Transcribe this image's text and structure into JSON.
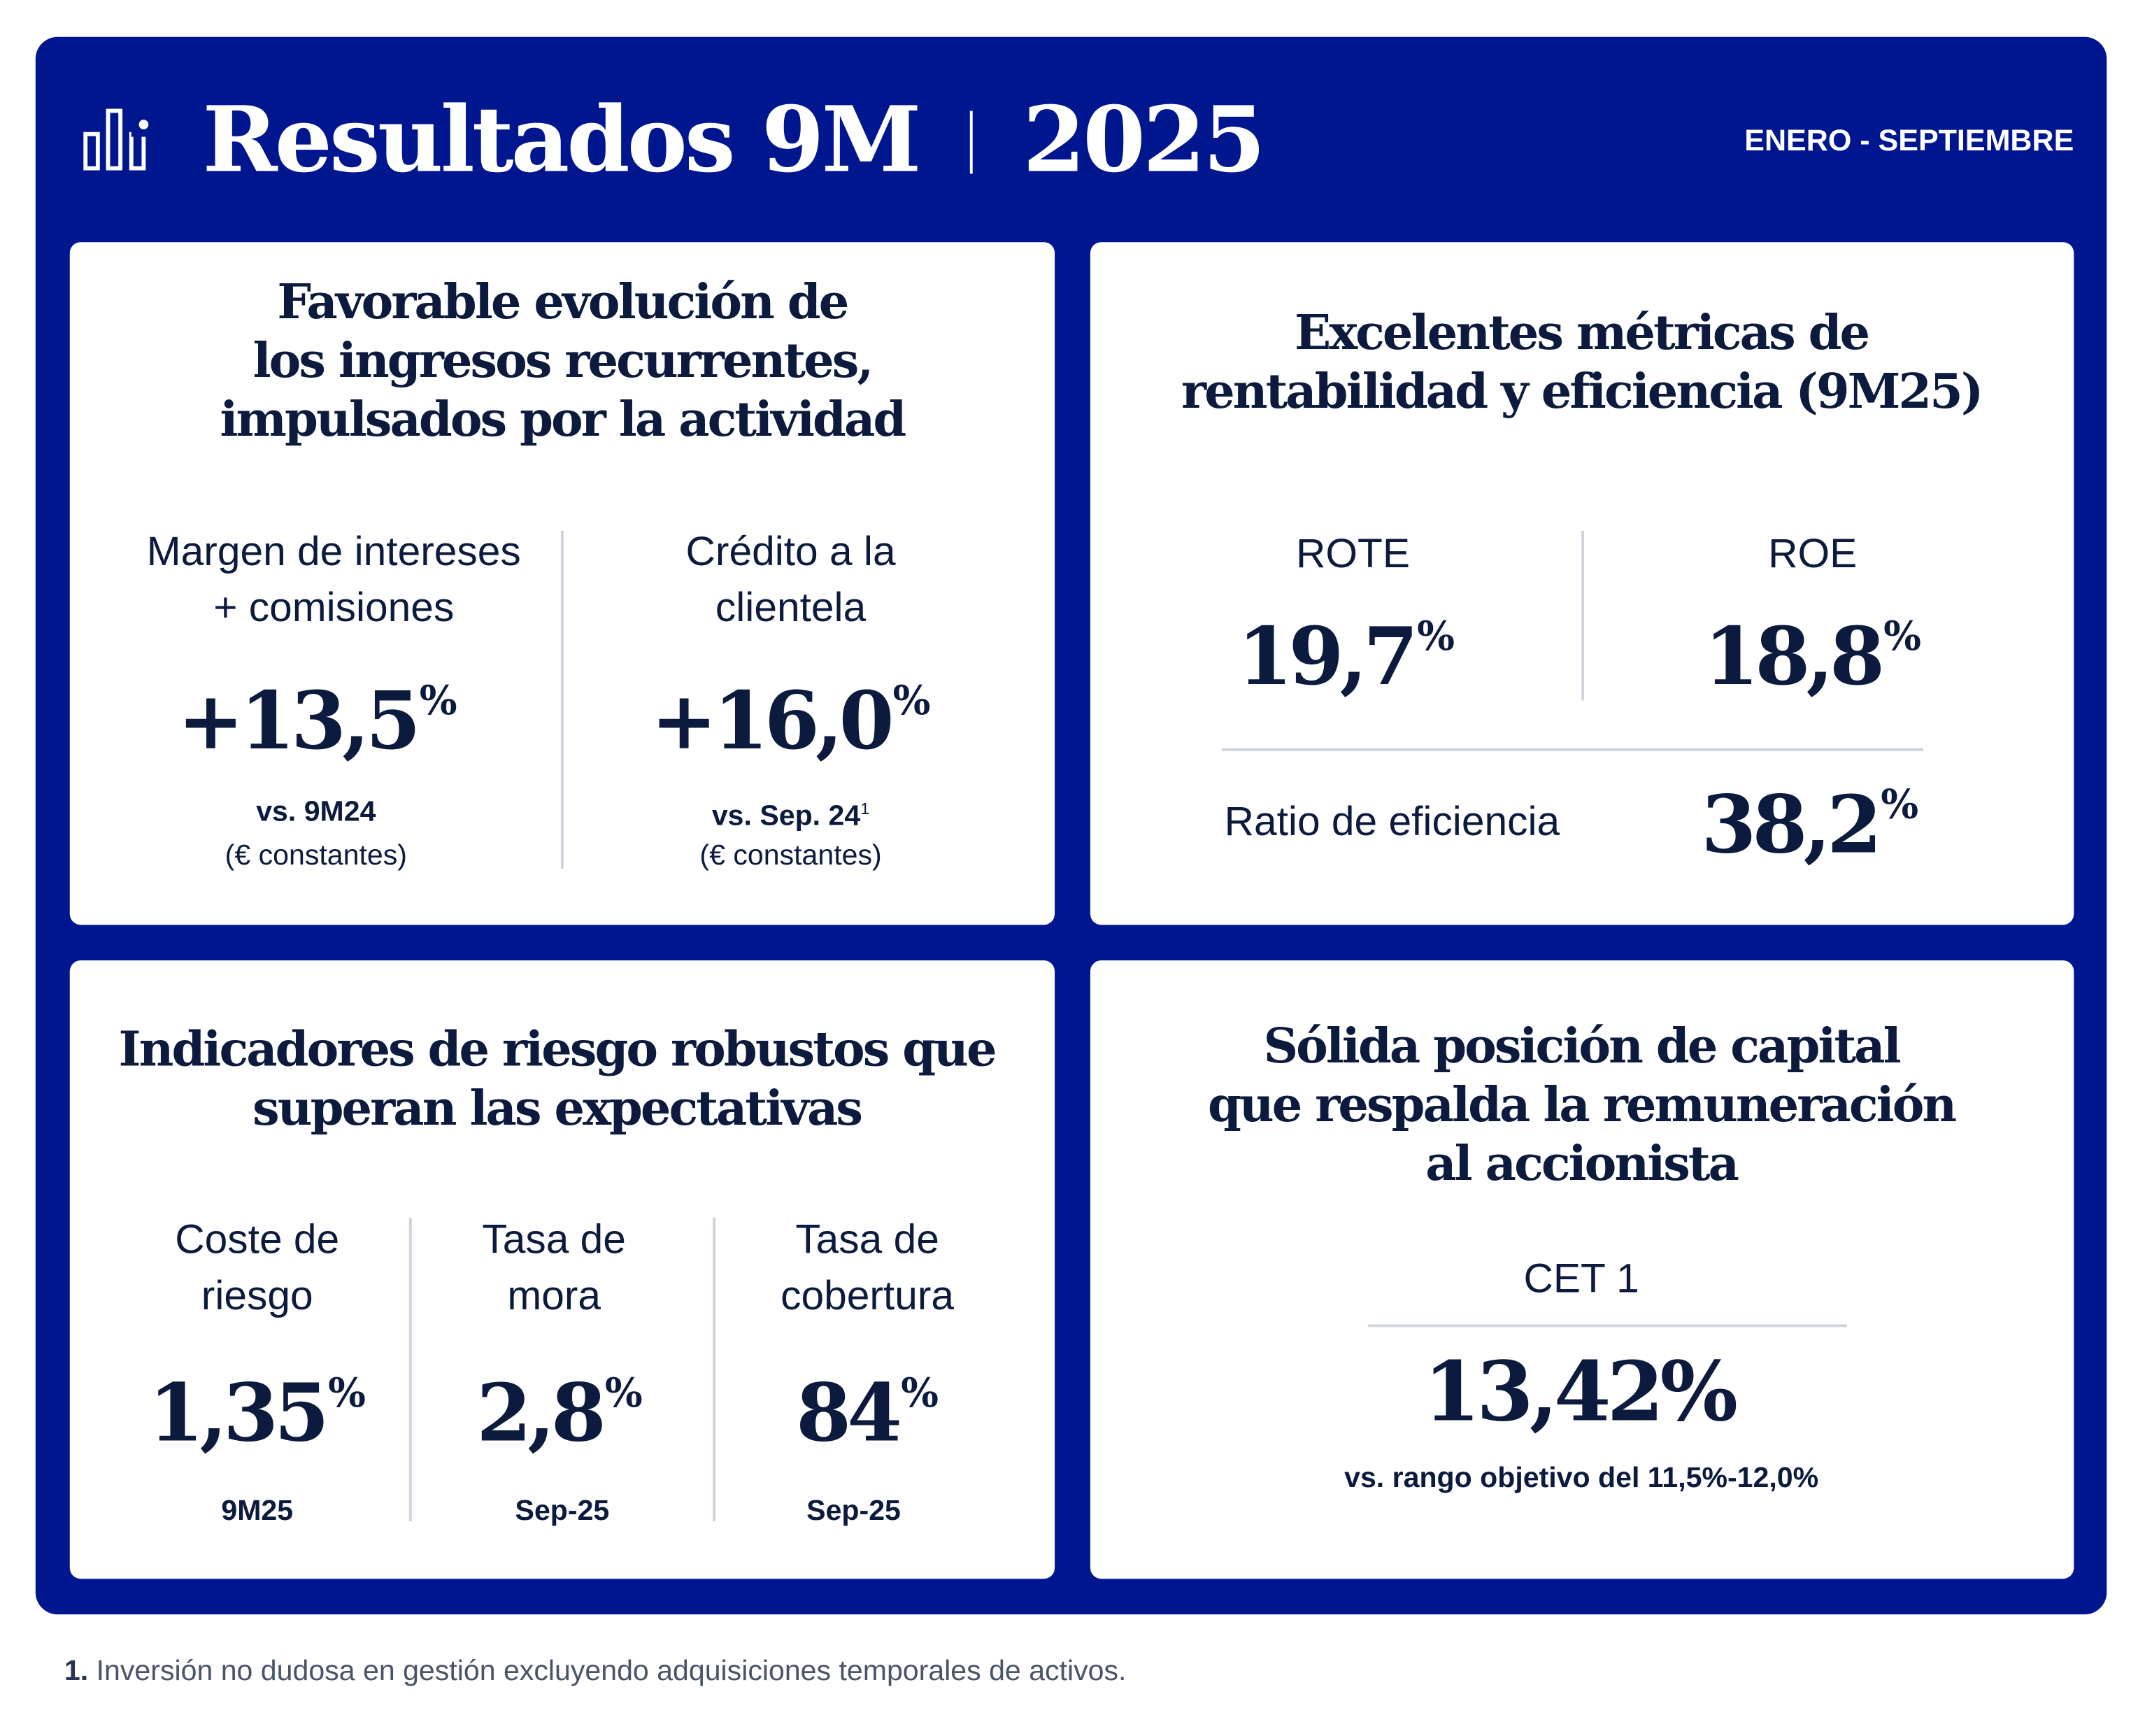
{
  "header": {
    "title": "Resultados 9M",
    "year": "2025",
    "period": "ENERO - SEPTIEMBRE",
    "icon": "bar-chart-icon"
  },
  "colors": {
    "brand_blue": "#00168f",
    "text": "#0c1a3d",
    "divider": "#cfd4dc"
  },
  "cards": {
    "ingresos": {
      "title": [
        "Favorable evolución de",
        "los ingresos recurrentes,",
        "impulsados por la actividad"
      ],
      "metrics": [
        {
          "label": [
            "Margen de intereses",
            "+ comisiones"
          ],
          "value": "+13,5",
          "unit": "%",
          "sub": "vs. 9M24",
          "sub2": "(€ constantes)"
        },
        {
          "label": [
            "Crédito a la",
            "clientela"
          ],
          "value": "+16,0",
          "unit": "%",
          "sub": "vs. Sep. 24",
          "sup": "1",
          "sub2": "(€ constantes)"
        }
      ]
    },
    "rentabilidad": {
      "title": [
        "Excelentes métricas de",
        "rentabilidad y eficiencia (9M25)"
      ],
      "metrics": [
        {
          "label": "ROTE",
          "value": "19,7",
          "unit": "%"
        },
        {
          "label": "ROE",
          "value": "18,8",
          "unit": "%"
        }
      ],
      "efficiency": {
        "label": "Ratio de eficiencia",
        "value": "38,2",
        "unit": "%"
      }
    },
    "riesgo": {
      "title": [
        "Indicadores de riesgo robustos que",
        "superan las expectativas"
      ],
      "metrics": [
        {
          "label": [
            "Coste de",
            "riesgo"
          ],
          "value": "1,35",
          "unit": "%",
          "sub": "9M25"
        },
        {
          "label": [
            "Tasa de",
            "mora"
          ],
          "value": "2,8",
          "unit": "%",
          "sub": "Sep-25"
        },
        {
          "label": [
            "Tasa de",
            "cobertura"
          ],
          "value": "84",
          "unit": "%",
          "sub": "Sep-25"
        }
      ]
    },
    "capital": {
      "title": [
        "Sólida posición de capital",
        "que respalda la remuneración",
        "al accionista"
      ],
      "label": "CET 1",
      "value": "13,42%",
      "sub": "vs. rango objetivo del 11,5%-12,0%"
    }
  },
  "footnote": {
    "number": "1.",
    "text": "Inversión no dudosa en gestión excluyendo adquisiciones temporales de activos."
  }
}
